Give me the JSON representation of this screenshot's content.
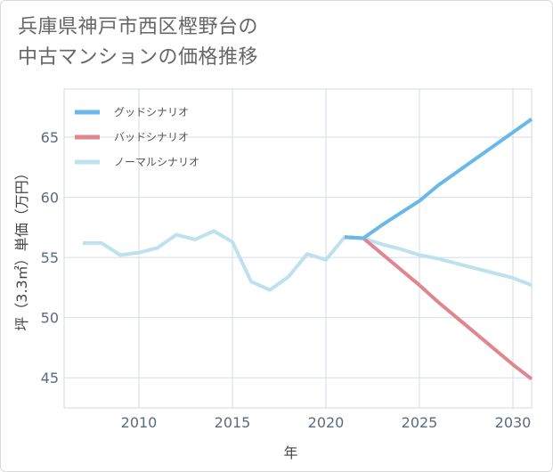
{
  "title_lines": [
    "兵庫県神戸市西区樫野台の",
    "中古マンションの価格推移"
  ],
  "chart_data": {
    "type": "line",
    "title": "兵庫県神戸市西区樫野台の中古マンションの価格推移",
    "xlabel": "年",
    "ylabel": "坪（3.3㎡）単価（万円）",
    "xlim": [
      2006,
      2031
    ],
    "ylim": [
      42.5,
      69
    ],
    "xticks": [
      2010,
      2015,
      2020,
      2025,
      2030
    ],
    "yticks": [
      45,
      50,
      55,
      60,
      65
    ],
    "grid": true,
    "legend_position": "top-left",
    "series": [
      {
        "name": "グッドシナリオ",
        "color": "#6ab7ea",
        "x": [
          2021,
          2022,
          2023,
          2024,
          2025,
          2026,
          2027,
          2028,
          2029,
          2030,
          2031
        ],
        "y": [
          56.7,
          56.6,
          57.7,
          58.7,
          59.7,
          61.0,
          62.1,
          63.2,
          64.3,
          65.4,
          66.5
        ]
      },
      {
        "name": "バッドシナリオ",
        "color": "#e0868f",
        "x": [
          2021,
          2022,
          2023,
          2024,
          2025,
          2026,
          2027,
          2028,
          2029,
          2030,
          2031
        ],
        "y": [
          56.7,
          56.6,
          55.3,
          54.0,
          52.7,
          51.3,
          50.0,
          48.7,
          47.4,
          46.1,
          44.9
        ]
      },
      {
        "name": "ノーマルシナリオ",
        "color": "#bfe0ef",
        "x": [
          2007,
          2008,
          2009,
          2010,
          2011,
          2012,
          2013,
          2014,
          2015,
          2016,
          2017,
          2018,
          2019,
          2020,
          2021,
          2022,
          2023,
          2024,
          2025,
          2026,
          2027,
          2028,
          2029,
          2030,
          2031
        ],
        "y": [
          56.2,
          56.2,
          55.2,
          55.4,
          55.8,
          56.9,
          56.5,
          57.2,
          56.3,
          53.0,
          52.3,
          53.4,
          55.3,
          54.8,
          56.7,
          56.6,
          56.1,
          55.7,
          55.2,
          54.9,
          54.5,
          54.1,
          53.7,
          53.3,
          52.7
        ]
      }
    ]
  }
}
